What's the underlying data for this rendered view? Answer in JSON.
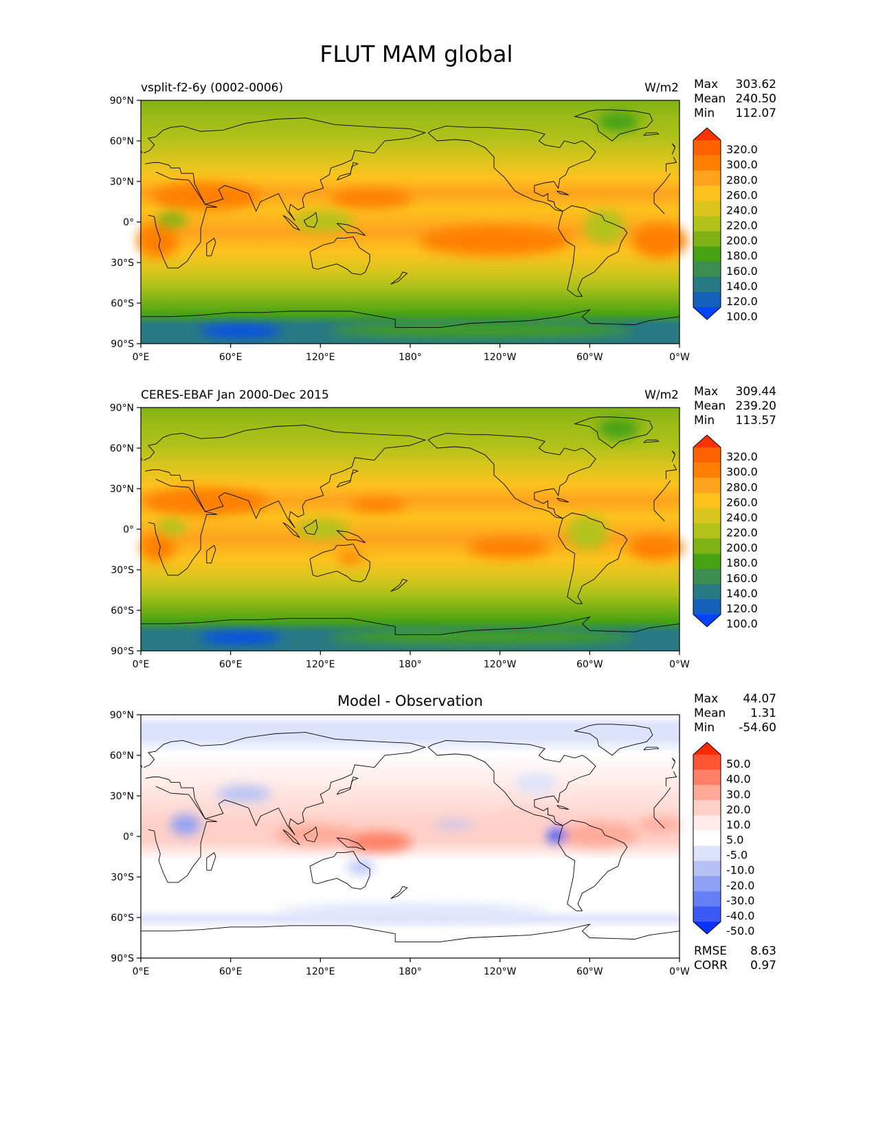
{
  "title": "FLUT MAM global",
  "axes": {
    "lat_labels": [
      "90°N",
      "60°N",
      "30°N",
      "0°",
      "30°S",
      "60°S",
      "90°S"
    ],
    "lon_labels": [
      "0°E",
      "60°E",
      "120°E",
      "180°",
      "120°W",
      "60°W",
      "0°W"
    ]
  },
  "panels": [
    {
      "left_title": "vsplit-f2-6y (0002-0006)",
      "center_title": "",
      "units": "W/m2",
      "stats": {
        "Max": "303.62",
        "Mean": "240.50",
        "Min": "112.07"
      },
      "colorbar": {
        "labels": [
          "320.0",
          "300.0",
          "280.0",
          "260.0",
          "240.0",
          "220.0",
          "200.0",
          "180.0",
          "160.0",
          "140.0",
          "120.0",
          "100.0"
        ],
        "colors": [
          "#ff3300",
          "#ff6300",
          "#ff8000",
          "#ffa21e",
          "#fec21e",
          "#d9c51d",
          "#b2c21a",
          "#7fb315",
          "#47a314",
          "#3d8c50",
          "#287a84",
          "#1560b8",
          "#0044ff"
        ]
      }
    },
    {
      "left_title": "CERES-EBAF Jan 2000-Dec 2015",
      "center_title": "",
      "units": "W/m2",
      "stats": {
        "Max": "309.44",
        "Mean": "239.20",
        "Min": "113.57"
      },
      "colorbar": {
        "labels": [
          "320.0",
          "300.0",
          "280.0",
          "260.0",
          "240.0",
          "220.0",
          "200.0",
          "180.0",
          "160.0",
          "140.0",
          "120.0",
          "100.0"
        ],
        "colors": [
          "#ff3300",
          "#ff6300",
          "#ff8000",
          "#ffa21e",
          "#fec21e",
          "#d9c51d",
          "#b2c21a",
          "#7fb315",
          "#47a314",
          "#3d8c50",
          "#287a84",
          "#1560b8",
          "#0044ff"
        ]
      }
    },
    {
      "left_title": "",
      "center_title": "Model - Observation",
      "units": "",
      "stats": {
        "Max": "44.07",
        "Mean": "1.31",
        "Min": "-54.60"
      },
      "extra_stats": {
        "RMSE": "8.63",
        "CORR": "0.97"
      },
      "colorbar": {
        "labels": [
          "50.0",
          "40.0",
          "30.0",
          "20.0",
          "10.0",
          "5.0",
          "-5.0",
          "-10.0",
          "-20.0",
          "-30.0",
          "-40.0",
          "-50.0"
        ],
        "colors": [
          "#ff2a00",
          "#ff5533",
          "#ff8066",
          "#ffaa99",
          "#ffd0c8",
          "#ffecea",
          "#ffffff",
          "#dde3fb",
          "#b7c3f7",
          "#8fa1f4",
          "#6680f5",
          "#3d5af7",
          "#0b33ff"
        ]
      }
    }
  ]
}
